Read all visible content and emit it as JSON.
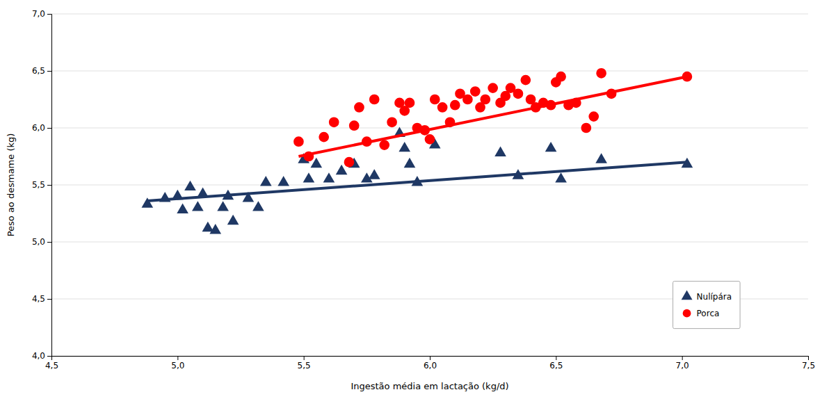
{
  "chart_data": {
    "type": "scatter",
    "xlabel": "Ingestão média em lactação (kg/d)",
    "ylabel": "Peso ao desmame (kg)",
    "xlim": [
      4.5,
      7.5
    ],
    "ylim": [
      4.0,
      7.0
    ],
    "xticks": [
      {
        "value": 4.5,
        "label": "4,5"
      },
      {
        "value": 5.0,
        "label": "5,0"
      },
      {
        "value": 5.5,
        "label": "5,5"
      },
      {
        "value": 6.0,
        "label": "6,0"
      },
      {
        "value": 6.5,
        "label": "6,5"
      },
      {
        "value": 7.0,
        "label": "7,0"
      },
      {
        "value": 7.5,
        "label": "7,5"
      }
    ],
    "yticks": [
      {
        "value": 4.0,
        "label": "4,0"
      },
      {
        "value": 4.5,
        "label": "4,5"
      },
      {
        "value": 5.0,
        "label": "5,0"
      },
      {
        "value": 5.5,
        "label": "5,5"
      },
      {
        "value": 6.0,
        "label": "6,0"
      },
      {
        "value": 6.5,
        "label": "6,5"
      },
      {
        "value": 7.0,
        "label": "7,0"
      }
    ],
    "grid": "y",
    "legend": "lower right",
    "series": [
      {
        "name": "Nulípára",
        "color": "#1F3864",
        "marker": "triangle",
        "x": [
          4.88,
          4.95,
          5.0,
          5.02,
          5.05,
          5.08,
          5.1,
          5.12,
          5.15,
          5.18,
          5.2,
          5.22,
          5.28,
          5.32,
          5.35,
          5.42,
          5.5,
          5.52,
          5.55,
          5.6,
          5.65,
          5.7,
          5.75,
          5.78,
          5.88,
          5.9,
          5.92,
          5.95,
          6.02,
          6.28,
          6.35,
          6.48,
          6.52,
          6.68,
          7.02
        ],
        "values": [
          5.33,
          5.38,
          5.4,
          5.28,
          5.48,
          5.3,
          5.42,
          5.12,
          5.1,
          5.3,
          5.4,
          5.18,
          5.38,
          5.3,
          5.52,
          5.52,
          5.72,
          5.55,
          5.68,
          5.55,
          5.62,
          5.68,
          5.55,
          5.58,
          5.95,
          5.82,
          5.68,
          5.52,
          5.85,
          5.78,
          5.58,
          5.82,
          5.55,
          5.72,
          5.68
        ]
      },
      {
        "name": "Porca",
        "color": "#FF0000",
        "marker": "circle",
        "x": [
          5.48,
          5.52,
          5.58,
          5.62,
          5.68,
          5.7,
          5.72,
          5.75,
          5.78,
          5.82,
          5.85,
          5.88,
          5.9,
          5.92,
          5.95,
          5.98,
          6.0,
          6.02,
          6.05,
          6.08,
          6.1,
          6.12,
          6.15,
          6.18,
          6.2,
          6.22,
          6.25,
          6.28,
          6.3,
          6.32,
          6.35,
          6.38,
          6.4,
          6.42,
          6.45,
          6.48,
          6.5,
          6.52,
          6.55,
          6.58,
          6.62,
          6.65,
          6.68,
          6.72,
          7.02
        ],
        "values": [
          5.88,
          5.75,
          5.92,
          6.05,
          5.7,
          6.02,
          6.18,
          5.88,
          6.25,
          5.85,
          6.05,
          6.22,
          6.15,
          6.22,
          6.0,
          5.98,
          5.9,
          6.25,
          6.18,
          6.05,
          6.2,
          6.3,
          6.25,
          6.32,
          6.18,
          6.25,
          6.35,
          6.22,
          6.28,
          6.35,
          6.3,
          6.42,
          6.25,
          6.18,
          6.22,
          6.2,
          6.4,
          6.45,
          6.2,
          6.22,
          6.0,
          6.1,
          6.48,
          6.3,
          6.45
        ]
      },
      {
        "type": "line",
        "color": "#1F3864",
        "x": [
          4.88,
          7.02
        ],
        "values": [
          5.36,
          5.7
        ]
      },
      {
        "type": "line",
        "color": "#FF0000",
        "x": [
          5.48,
          7.02
        ],
        "values": [
          5.75,
          6.45
        ]
      }
    ]
  }
}
